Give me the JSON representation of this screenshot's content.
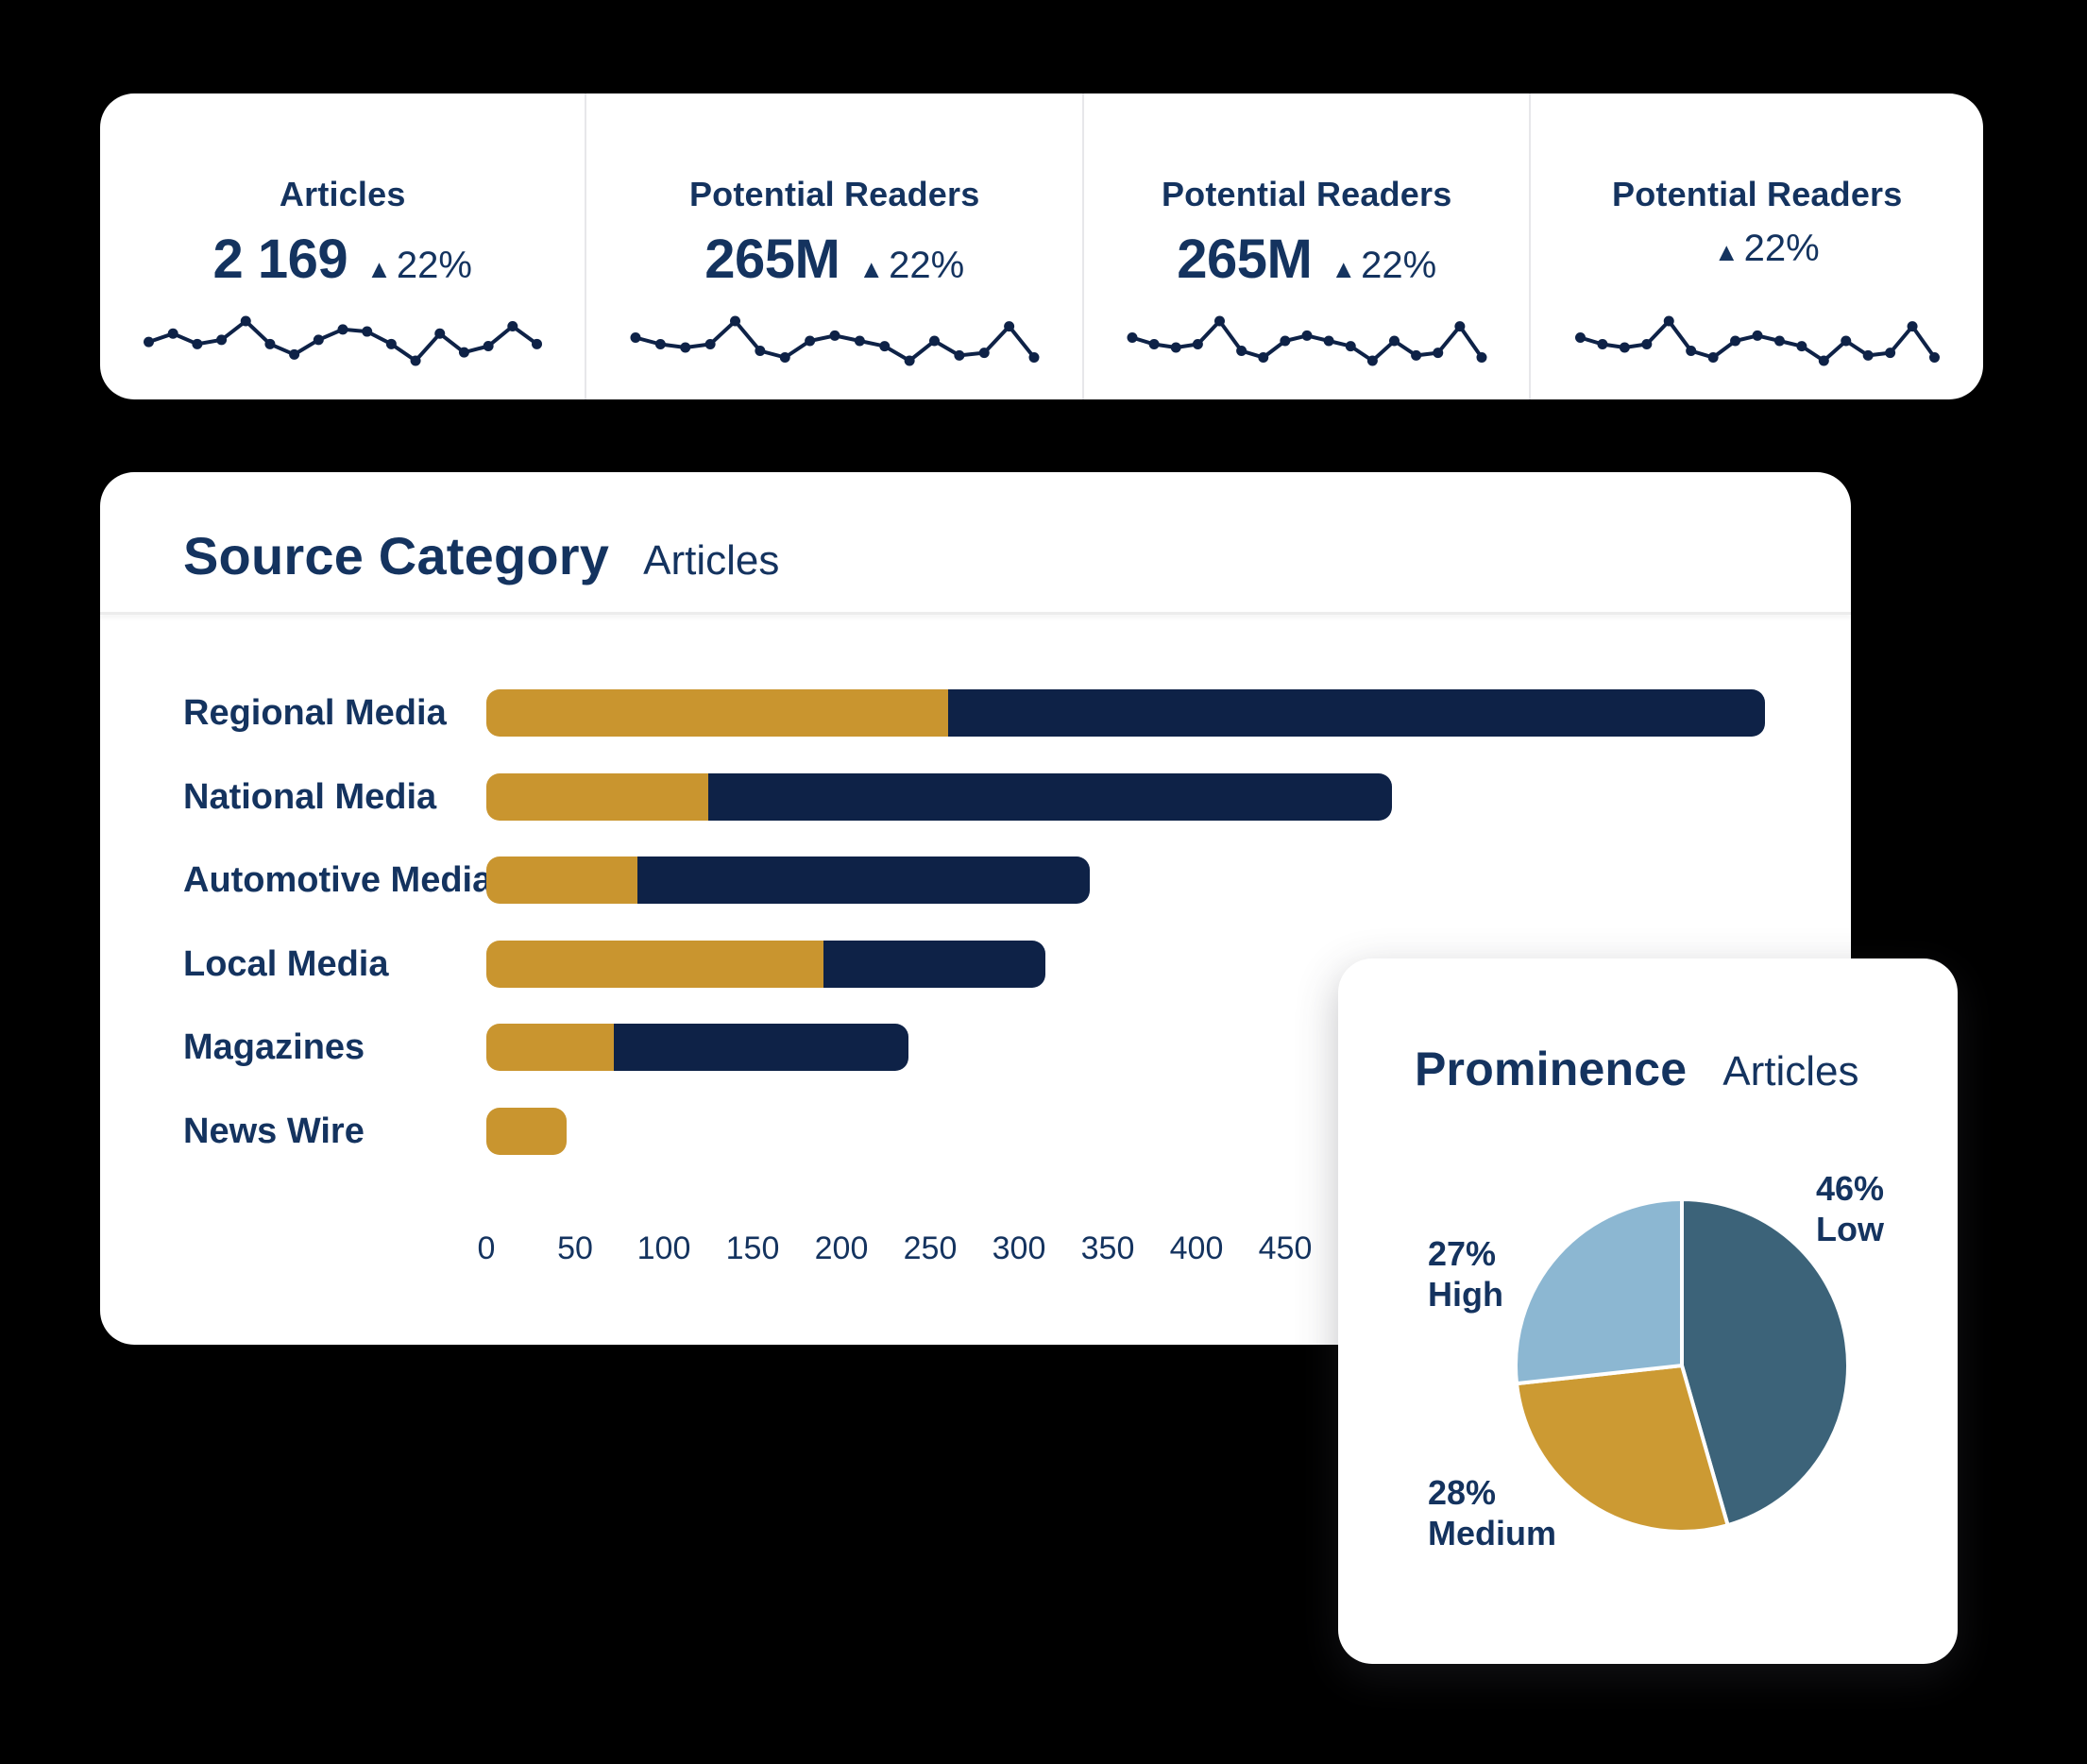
{
  "icons": {
    "up_triangle": "▲"
  },
  "colors": {
    "page_background": "#000000",
    "card_background": "#ffffff",
    "navy_text": "#14335f",
    "bar_navy": "#0e2247",
    "bar_gold": "#c9952f",
    "pie_low": "#3c6379",
    "pie_medium": "#cc9a33",
    "pie_high": "#8cb7d2",
    "divider": "#e7e7ea"
  },
  "stat_cards": [
    {
      "title": "Articles",
      "value": "2 169",
      "delta": "22%"
    },
    {
      "title": "Potential Readers",
      "value": "265M",
      "delta": "22%"
    },
    {
      "title": "Potential Readers",
      "value": "265M",
      "delta": "22%"
    },
    {
      "title": "Potential Readers",
      "value": "",
      "delta": "22%"
    }
  ],
  "source_category": {
    "title": "Source Category",
    "subtitle": "Articles"
  },
  "prominence": {
    "title": "Prominence",
    "subtitle": "Articles"
  },
  "chart_data": [
    {
      "type": "bar",
      "title": "Source Category",
      "subtitle": "Articles",
      "orientation": "horizontal",
      "stacked": true,
      "grid": false,
      "categories": [
        "Regional Media",
        "National Media",
        "Automotive Media",
        "Local Media",
        "Magazines",
        "News Wire"
      ],
      "series": [
        {
          "name": "gold-segment",
          "color": "#c9952f",
          "values": [
            260,
            125,
            85,
            190,
            72,
            45
          ]
        },
        {
          "name": "navy-segment",
          "color": "#0e2247",
          "values": [
            460,
            385,
            255,
            125,
            166,
            0
          ]
        }
      ],
      "totals": [
        720,
        510,
        340,
        315,
        238,
        45
      ],
      "x_ticks": [
        0,
        50,
        100,
        150,
        200,
        250,
        300,
        350,
        400,
        450
      ],
      "xlim": [
        0,
        755
      ],
      "xlabel": "",
      "ylabel": ""
    },
    {
      "type": "pie",
      "title": "Prominence",
      "subtitle": "Articles",
      "start_angle_deg": 0,
      "direction": "clockwise",
      "slices": [
        {
          "label": "Low",
          "pct": 46,
          "color": "#3c6379"
        },
        {
          "label": "Medium",
          "pct": 28,
          "color": "#cc9a33"
        },
        {
          "label": "High",
          "pct": 27,
          "color": "#8cb7d2"
        }
      ],
      "label_format": "{pct}% {label}"
    },
    {
      "type": "line",
      "name": "stat-card-sparklines",
      "x": [
        1,
        2,
        3,
        4,
        5,
        6,
        7,
        8,
        9,
        10,
        11,
        12,
        13,
        14,
        15,
        16,
        17
      ],
      "series": [
        {
          "name": "Articles",
          "values": [
            40,
            48,
            38,
            42,
            60,
            38,
            28,
            42,
            52,
            50,
            38,
            22,
            48,
            30,
            36,
            55,
            38
          ]
        },
        {
          "name": "Potential Readers",
          "values": [
            45,
            35,
            30,
            35,
            70,
            25,
            15,
            40,
            48,
            40,
            32,
            10,
            40,
            18,
            22,
            62,
            15
          ]
        },
        {
          "name": "Potential Readers 2",
          "values": [
            45,
            35,
            30,
            35,
            70,
            25,
            15,
            40,
            48,
            40,
            32,
            10,
            40,
            18,
            22,
            62,
            15
          ]
        },
        {
          "name": "Potential Readers 3",
          "values": [
            45,
            35,
            30,
            35,
            70,
            25,
            15,
            40,
            48,
            40,
            32,
            10,
            40,
            18,
            22,
            62,
            15
          ]
        }
      ]
    }
  ]
}
